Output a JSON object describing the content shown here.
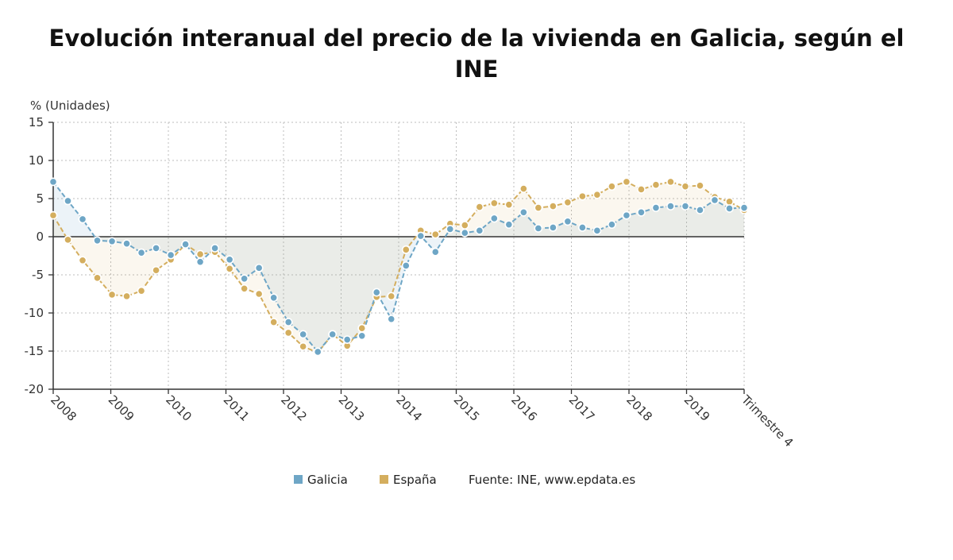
{
  "chart_data": {
    "type": "line",
    "title_line1": "Evolución interanual del precio de la vivienda en Galicia, según el",
    "title_line2": "INE",
    "ylabel": "% (Unidades)",
    "ylim": [
      -20,
      15
    ],
    "yticks": [
      15,
      10,
      5,
      0,
      -5,
      -10,
      -15,
      -20
    ],
    "grid": true,
    "x_tick_labels": [
      "2008",
      "2009",
      "2010",
      "2011",
      "2012",
      "2013",
      "2014",
      "2015",
      "2016",
      "2017",
      "2018",
      "2019",
      "Trimestre 4"
    ],
    "legend_position": "bottom",
    "series": [
      {
        "name": "Galicia",
        "color": "#6ea6c6",
        "values": [
          7.2,
          4.7,
          2.3,
          -0.5,
          -0.6,
          -0.9,
          -2.1,
          -1.5,
          -2.4,
          -1.0,
          -3.3,
          -1.5,
          -3.0,
          -5.5,
          -4.1,
          -8.0,
          -11.2,
          -12.8,
          -15.1,
          -12.8,
          -13.5,
          -13.0,
          -7.3,
          -10.8,
          -3.8,
          0.1,
          -2.0,
          1.0,
          0.5,
          0.8,
          2.4,
          1.6,
          3.2,
          1.1,
          1.2,
          2.0,
          1.2,
          0.8,
          1.6,
          2.8,
          3.2,
          3.8,
          4.0,
          4.0,
          3.5,
          4.8,
          3.7,
          3.8
        ]
      },
      {
        "name": "España",
        "color": "#d4ae5e",
        "values": [
          2.8,
          -0.4,
          -3.1,
          -5.4,
          -7.6,
          -7.8,
          -7.1,
          -4.4,
          -3.0,
          -1.0,
          -2.3,
          -2.0,
          -4.2,
          -6.8,
          -7.5,
          -11.2,
          -12.6,
          -14.4,
          -15.2,
          -12.8,
          -14.3,
          -12.0,
          -7.9,
          -7.8,
          -1.7,
          0.8,
          0.3,
          1.7,
          1.5,
          3.9,
          4.4,
          4.2,
          6.3,
          3.8,
          4.0,
          4.5,
          5.3,
          5.5,
          6.6,
          7.2,
          6.2,
          6.8,
          7.2,
          6.6,
          6.7,
          5.2,
          4.6,
          3.5
        ]
      }
    ],
    "source_text": "Fuente: INE, www.epdata.es"
  }
}
